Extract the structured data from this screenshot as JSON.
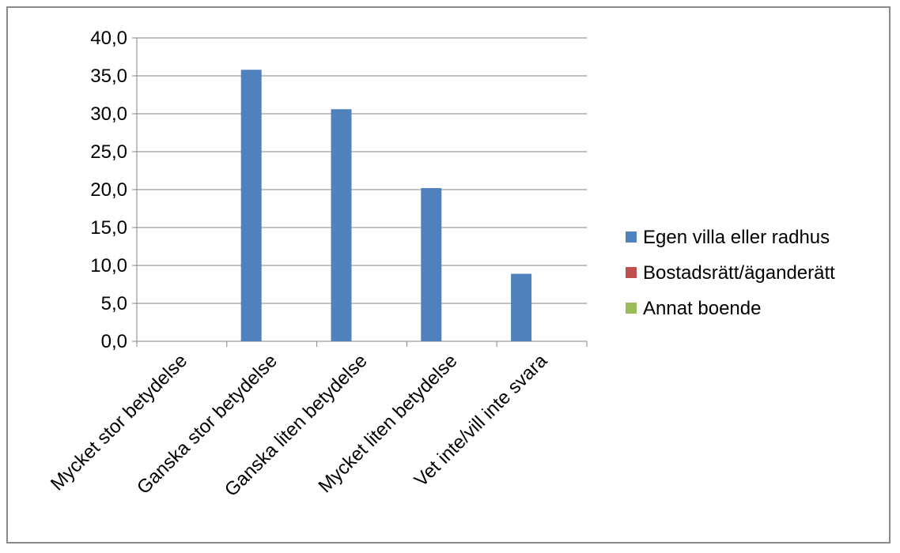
{
  "chart_data": {
    "type": "bar",
    "categories": [
      "Mycket stor betydelse",
      "Ganska stor betydelse",
      "Ganska liten betydelse",
      "Mycket liten betydelse",
      "Vet inte/vill inte svara"
    ],
    "series": [
      {
        "name": "Egen villa eller radhus",
        "color": "#4f81bd",
        "values": [
          0,
          35.8,
          30.6,
          20.2,
          8.9
        ]
      },
      {
        "name": "Bostadsrätt/äganderätt",
        "color": "#c0504d",
        "values": [
          0,
          0,
          0,
          0,
          0
        ]
      },
      {
        "name": "Annat boende",
        "color": "#9bbb59",
        "values": [
          0,
          0,
          0,
          0,
          0
        ]
      }
    ],
    "ylim": [
      0,
      40
    ],
    "yticks": [
      "0,0",
      "5,0",
      "10,0",
      "15,0",
      "20,0",
      "25,0",
      "30,0",
      "35,0",
      "40,0"
    ],
    "title": "",
    "xlabel": "",
    "ylabel": "",
    "grid": true,
    "legend_position": "right"
  }
}
